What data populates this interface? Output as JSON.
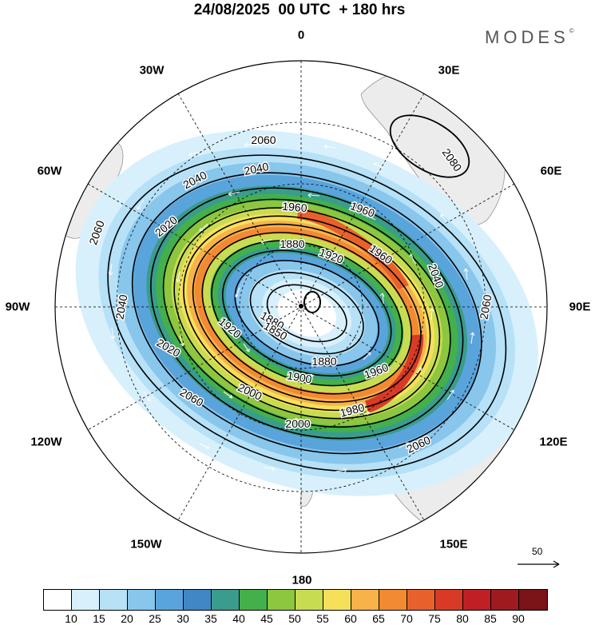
{
  "header": {
    "title": "24/08/2025  00 UTC  + 180 hrs",
    "brand": "MODES",
    "brand_mark": "©"
  },
  "map": {
    "projection": "south-polar-stereographic",
    "longitude_labels": [
      "0",
      "30E",
      "60E",
      "90E",
      "120E",
      "150E",
      "180",
      "150W",
      "120W",
      "90W",
      "60W",
      "30W"
    ],
    "contour_labels": [
      "2060",
      "2040",
      "2040",
      "2020",
      "1960",
      "1960",
      "1880",
      "1920",
      "1960",
      "2080",
      "2040",
      "2060",
      "2060",
      "2040",
      "2020",
      "1920",
      "1880",
      "1850",
      "1880",
      "1900",
      "1960",
      "2000",
      "1980",
      "2000",
      "2060",
      "2060"
    ],
    "vector_reference": "50",
    "colors": {
      "land": "#ececec",
      "contour": "#000000",
      "vector": "#ffffff"
    }
  },
  "legend": {
    "ticks": [
      "10",
      "15",
      "20",
      "25",
      "30",
      "35",
      "40",
      "45",
      "50",
      "55",
      "60",
      "65",
      "70",
      "75",
      "80",
      "85",
      "90"
    ],
    "colors": [
      "#ffffff",
      "#d7f0fc",
      "#b6e1f7",
      "#88c6ec",
      "#5aa4dc",
      "#3f87c5",
      "#3a9c8c",
      "#43b04b",
      "#8dc63f",
      "#c8dc52",
      "#f6e05a",
      "#f7b24a",
      "#f28a33",
      "#e8612c",
      "#d93a27",
      "#bf2026",
      "#9e1a1f",
      "#7a1418"
    ]
  }
}
